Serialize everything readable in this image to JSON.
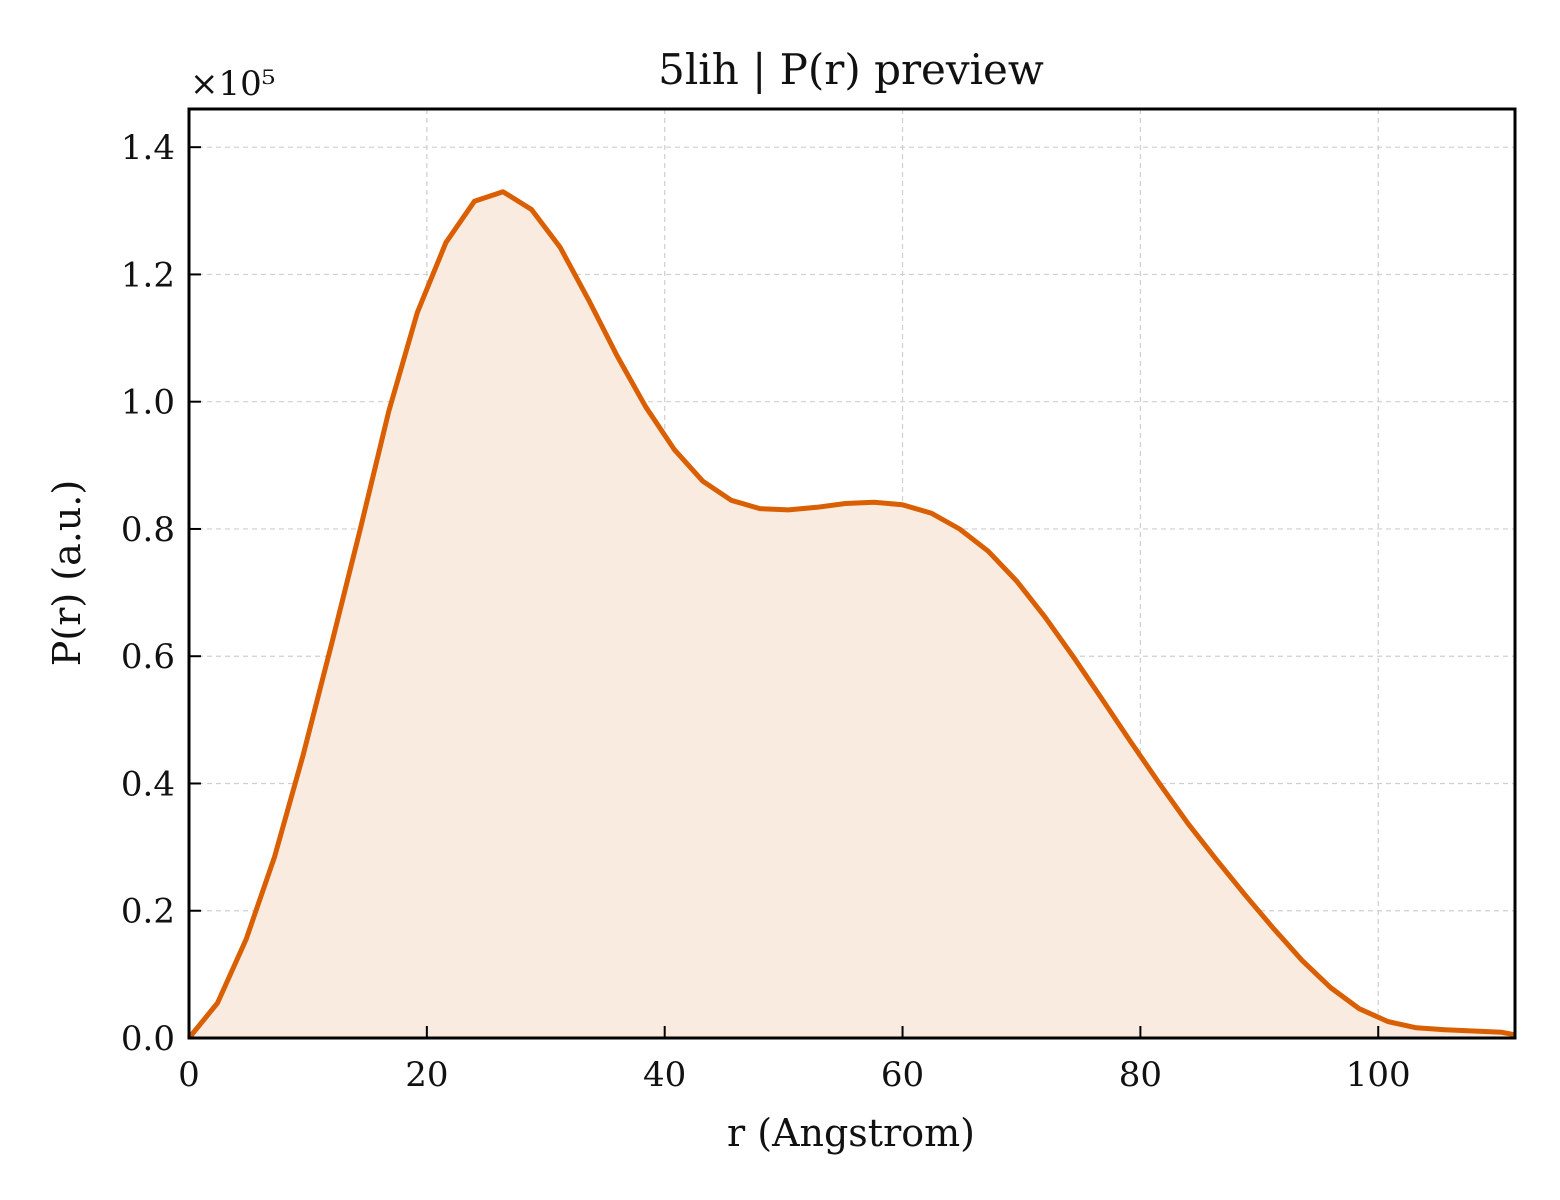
{
  "chart_data": {
    "type": "area",
    "title": "5lih | P(r) preview",
    "xlabel": "r (Angstrom)",
    "ylabel": "P(r) (a.u.)",
    "y_offset_label": "×10⁵",
    "y_scale_factor": 100000,
    "xlim": [
      0,
      111.5
    ],
    "ylim": [
      0,
      1.46
    ],
    "x_ticks": [
      0,
      20,
      40,
      60,
      80,
      100
    ],
    "x_tick_labels": [
      "0",
      "20",
      "40",
      "60",
      "80",
      "100"
    ],
    "y_ticks": [
      0.0,
      0.2,
      0.4,
      0.6,
      0.8,
      1.0,
      1.2,
      1.4
    ],
    "y_tick_labels": [
      "0.0",
      "0.2",
      "0.4",
      "0.6",
      "0.8",
      "1.0",
      "1.2",
      "1.4"
    ],
    "grid": true,
    "line_color": "#d95f02",
    "fill_color": "#f9ebe0",
    "series": [
      {
        "x": [
          0,
          2.4,
          4.8,
          7.2,
          9.6,
          12.0,
          14.4,
          16.8,
          19.2,
          21.6,
          24.0,
          26.4,
          28.8,
          31.2,
          33.6,
          36.0,
          38.4,
          40.8,
          43.2,
          45.6,
          48.0,
          50.4,
          52.8,
          55.2,
          57.6,
          60.0,
          62.4,
          64.8,
          67.2,
          69.6,
          72.0,
          74.4,
          76.8,
          79.2,
          81.6,
          84.0,
          86.4,
          88.8,
          91.2,
          93.6,
          96.0,
          98.4,
          100.8,
          103.2,
          105.6,
          108.0,
          110.4,
          111.5
        ],
        "values": [
          0.0,
          0.055,
          0.155,
          0.285,
          0.445,
          0.62,
          0.8,
          0.985,
          1.14,
          1.25,
          1.315,
          1.33,
          1.302,
          1.243,
          1.16,
          1.072,
          0.992,
          0.925,
          0.875,
          0.845,
          0.832,
          0.83,
          0.834,
          0.84,
          0.842,
          0.838,
          0.825,
          0.8,
          0.765,
          0.718,
          0.661,
          0.598,
          0.532,
          0.465,
          0.4,
          0.337,
          0.28,
          0.225,
          0.172,
          0.122,
          0.079,
          0.046,
          0.026,
          0.016,
          0.013,
          0.011,
          0.009,
          0.005
        ]
      }
    ]
  }
}
